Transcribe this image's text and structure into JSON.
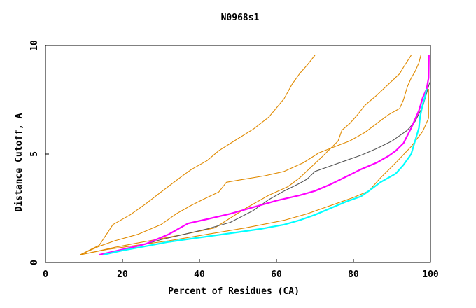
{
  "chart_data": {
    "type": "line",
    "title": "N0968s1",
    "xlabel": "Percent of Residues (CA)",
    "ylabel": "Distance Cutoff, A",
    "xlim": [
      0,
      100
    ],
    "ylim": [
      0,
      10
    ],
    "xticks": [
      0,
      20,
      40,
      60,
      80,
      100
    ],
    "yticks": [
      0,
      5,
      10
    ],
    "grid": false,
    "legend": "none",
    "series": [
      {
        "color": "#e08a00",
        "points": [
          [
            9,
            0.35
          ],
          [
            14,
            0.8
          ],
          [
            17.5,
            1.75
          ],
          [
            22,
            2.2
          ],
          [
            26,
            2.7
          ],
          [
            30,
            3.25
          ],
          [
            36,
            4.05
          ],
          [
            38,
            4.3
          ],
          [
            42,
            4.7
          ],
          [
            45,
            5.15
          ],
          [
            49,
            5.6
          ],
          [
            54,
            6.15
          ],
          [
            58,
            6.7
          ],
          [
            62,
            7.55
          ],
          [
            64,
            8.2
          ],
          [
            66,
            8.7
          ],
          [
            68,
            9.1
          ],
          [
            70,
            9.55
          ]
        ]
      },
      {
        "color": "#e08a00",
        "points": [
          [
            9,
            0.35
          ],
          [
            14,
            0.75
          ],
          [
            18,
            1.0
          ],
          [
            24,
            1.3
          ],
          [
            30,
            1.75
          ],
          [
            34,
            2.25
          ],
          [
            38,
            2.65
          ],
          [
            42,
            3.0
          ],
          [
            45,
            3.25
          ],
          [
            47,
            3.7
          ],
          [
            52,
            3.85
          ],
          [
            57,
            4.0
          ],
          [
            62,
            4.2
          ],
          [
            67,
            4.6
          ],
          [
            71,
            5.05
          ],
          [
            76,
            5.4
          ],
          [
            79,
            5.6
          ],
          [
            83,
            6.0
          ],
          [
            86,
            6.4
          ],
          [
            89,
            6.8
          ],
          [
            92,
            7.1
          ],
          [
            93,
            7.5
          ],
          [
            94,
            8.1
          ],
          [
            95,
            8.5
          ],
          [
            96,
            8.8
          ],
          [
            97,
            9.2
          ],
          [
            97.5,
            9.55
          ]
        ]
      },
      {
        "color": "#e08a00",
        "points": [
          [
            9,
            0.35
          ],
          [
            13,
            0.5
          ],
          [
            18,
            0.7
          ],
          [
            24,
            0.9
          ],
          [
            30,
            1.1
          ],
          [
            36,
            1.3
          ],
          [
            44,
            1.6
          ],
          [
            52,
            2.5
          ],
          [
            58,
            3.1
          ],
          [
            63,
            3.5
          ],
          [
            66,
            3.9
          ],
          [
            69,
            4.4
          ],
          [
            72,
            4.9
          ],
          [
            76,
            5.6
          ],
          [
            77,
            6.1
          ],
          [
            79,
            6.4
          ],
          [
            81,
            6.8
          ],
          [
            83,
            7.25
          ],
          [
            86,
            7.7
          ],
          [
            89,
            8.2
          ],
          [
            92,
            8.7
          ],
          [
            93,
            9.0
          ],
          [
            95,
            9.55
          ]
        ]
      },
      {
        "color": "#e08a00",
        "points": [
          [
            9,
            0.35
          ],
          [
            16,
            0.6
          ],
          [
            24,
            0.8
          ],
          [
            32,
            1.0
          ],
          [
            42,
            1.3
          ],
          [
            52,
            1.6
          ],
          [
            62,
            1.95
          ],
          [
            68,
            2.25
          ],
          [
            72,
            2.5
          ],
          [
            76,
            2.75
          ],
          [
            80,
            3.0
          ],
          [
            84,
            3.3
          ],
          [
            87,
            3.9
          ],
          [
            91,
            4.6
          ],
          [
            95,
            5.35
          ],
          [
            98,
            6.05
          ],
          [
            99.5,
            6.65
          ],
          [
            99.5,
            8.0
          ]
        ]
      },
      {
        "color": "#555555",
        "points": [
          [
            15,
            0.35
          ],
          [
            20,
            0.55
          ],
          [
            25,
            0.8
          ],
          [
            30,
            1.05
          ],
          [
            36,
            1.3
          ],
          [
            42,
            1.55
          ],
          [
            48,
            1.85
          ],
          [
            54,
            2.4
          ],
          [
            58,
            2.9
          ],
          [
            62,
            3.3
          ],
          [
            66,
            3.65
          ],
          [
            68,
            3.85
          ],
          [
            70,
            4.2
          ],
          [
            74,
            4.45
          ],
          [
            78,
            4.7
          ],
          [
            82,
            4.95
          ],
          [
            86,
            5.25
          ],
          [
            90,
            5.6
          ],
          [
            94,
            6.1
          ],
          [
            96,
            6.5
          ],
          [
            98,
            7.2
          ],
          [
            99,
            7.8
          ],
          [
            99.8,
            8.3
          ]
        ]
      },
      {
        "color": "#ff00ff",
        "points": [
          [
            14,
            0.35
          ],
          [
            20,
            0.6
          ],
          [
            26,
            0.85
          ],
          [
            32,
            1.3
          ],
          [
            37,
            1.8
          ],
          [
            42,
            2.0
          ],
          [
            48,
            2.25
          ],
          [
            54,
            2.55
          ],
          [
            60,
            2.85
          ],
          [
            66,
            3.1
          ],
          [
            70,
            3.3
          ],
          [
            74,
            3.6
          ],
          [
            78,
            3.95
          ],
          [
            82,
            4.3
          ],
          [
            86,
            4.6
          ],
          [
            89,
            4.9
          ],
          [
            91,
            5.15
          ],
          [
            93,
            5.5
          ],
          [
            95,
            6.2
          ],
          [
            97,
            7.0
          ],
          [
            98,
            7.6
          ],
          [
            99,
            8.0
          ],
          [
            99.5,
            8.5
          ],
          [
            99.6,
            9.55
          ]
        ]
      },
      {
        "color": "#00ffff",
        "points": [
          [
            15,
            0.35
          ],
          [
            20,
            0.55
          ],
          [
            26,
            0.75
          ],
          [
            32,
            0.95
          ],
          [
            38,
            1.1
          ],
          [
            44,
            1.25
          ],
          [
            50,
            1.4
          ],
          [
            56,
            1.55
          ],
          [
            62,
            1.75
          ],
          [
            66,
            1.95
          ],
          [
            70,
            2.2
          ],
          [
            74,
            2.5
          ],
          [
            78,
            2.8
          ],
          [
            82,
            3.05
          ],
          [
            84,
            3.3
          ],
          [
            87,
            3.7
          ],
          [
            91,
            4.1
          ],
          [
            93,
            4.5
          ],
          [
            95,
            5.0
          ],
          [
            96,
            5.6
          ],
          [
            97,
            6.2
          ],
          [
            97.3,
            6.7
          ],
          [
            98,
            7.3
          ],
          [
            98.5,
            7.6
          ],
          [
            99,
            8.0
          ]
        ]
      }
    ]
  }
}
